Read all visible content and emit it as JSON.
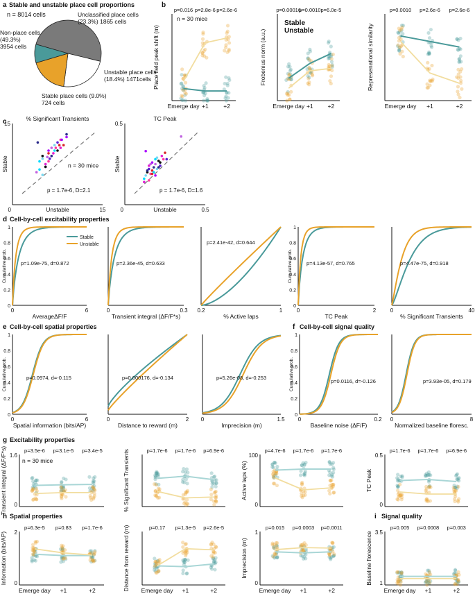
{
  "colors": {
    "stable": "#4a9a9a",
    "unstable": "#e8a22a",
    "stable_light": "#a9d6d6",
    "unstable_light": "#f2dd9f",
    "nonplace": "#7a7a7a",
    "unclassified": "#ffffff"
  },
  "panel_a": {
    "letter": "a",
    "title": "Stable and unstable place cell proportions",
    "total": "n = 8014 cells",
    "label_nonplace": [
      "Non-place cells",
      "(49.3%)",
      "3954 cells"
    ],
    "label_unclassified": [
      "Unclassified place cells",
      "(23.3%) 1865 cells"
    ],
    "label_unstable": [
      "Unstable place cells",
      "(18.4%) 1471cells"
    ],
    "label_stable": [
      "Stable place cells (9.0%)",
      "724 cells"
    ]
  },
  "panel_b": {
    "letter": "b",
    "legend_stable": "Stable",
    "legend_unstable": "Unstable",
    "n_label": "n = 30 mice",
    "xticks": [
      "Emerge day",
      "+1",
      "+2"
    ],
    "plots": [
      {
        "ylabel": "Place field peak shift (m)",
        "pvals": [
          "p=0.016",
          "p=2.8e-6",
          "p=2.6e-6"
        ],
        "yticks": [
          "0",
          "0.5",
          "1",
          "1.5"
        ]
      },
      {
        "ylabel": "Frobenius norm (a.u.)",
        "pvals": [
          "p=0.00016",
          "p=0.0010",
          "p=6.0e-5"
        ],
        "yticks": [
          "0.2",
          "0.4",
          "0.6",
          "0.8"
        ]
      },
      {
        "ylabel": "Represenational similarity",
        "pvals": [
          "p=0.0010",
          "p=2.6e-6",
          "p=2.6e-6"
        ],
        "yticks": [
          "0",
          "0.5",
          "1"
        ]
      }
    ]
  },
  "panel_c": {
    "letter": "c",
    "plots": [
      {
        "title": "% Significant Transients",
        "ylabel": "Stable",
        "xlabel": "Unstable",
        "ytop": "15",
        "xright": "15",
        "origin": "0",
        "n_label": "n = 30 mice",
        "stat": "p = 1.7e-6, D=2.1"
      },
      {
        "title": "TC Peak",
        "ylabel": "Stable",
        "xlabel": "Unstable",
        "ytop": "0.5",
        "xright": "0.5",
        "origin": "0",
        "stat": "p = 1.7e-6, D=1.6"
      }
    ]
  },
  "panel_d": {
    "letter": "d",
    "title": "Cell-by-cell excitability properties",
    "legend_stable": "Stable",
    "legend_unstable": "Unstable",
    "cum_label": "Cumulative prob.",
    "plots": [
      {
        "xlabel": "AverageΔF/F",
        "x0": "0",
        "x1": "6",
        "stat": "p=1.09e-75, d=0.872"
      },
      {
        "xlabel": "Transient integral (ΔF/F*s)",
        "x0": "0",
        "x1": "0.3",
        "stat": "p=2.36e-45, d=0.633"
      },
      {
        "xlabel": "% Active laps",
        "x0": "0.2",
        "x1": "1",
        "stat": "p=2.41e-42, d=0.644"
      },
      {
        "xlabel": "TC Peak",
        "x0": "0",
        "x1": "2",
        "stat": "p=4.13e-57, d=0.765"
      },
      {
        "xlabel": "% Significant Transients",
        "x0": "0",
        "x1": "40",
        "stat": "p=4.47e-75, d=0.918"
      }
    ]
  },
  "panel_e": {
    "letter": "e",
    "title": "Cell-by-cell spatial properties",
    "plots": [
      {
        "xlabel": "Spatial information (bits/AP)",
        "x0": "0",
        "x1": "6",
        "stat": "p=0.0974, d=-0.115"
      },
      {
        "xlabel": "Distance to reward (m)",
        "x0": "0",
        "x1": "2",
        "stat": "p=0.000176, d=-0.134"
      },
      {
        "xlabel": "Imprecision (m)",
        "x0": "0",
        "x1": "1.5",
        "stat": "p=5.26e-08, d=-0.253"
      }
    ]
  },
  "panel_f": {
    "letter": "f",
    "title": "Cell-by-cell signal quality",
    "plots": [
      {
        "xlabel": "Baseline noise (ΔF/F)",
        "x0": "0",
        "x1": "0.2",
        "stat": "p=0.0116, d=-0.126"
      },
      {
        "xlabel": "Normalized baseline floresc.",
        "x0": "0",
        "x1": "8",
        "stat": "p=3.93e-05, d=0.179"
      }
    ]
  },
  "panel_g": {
    "letter": "g",
    "title": "Excitability properties",
    "n_label": "n = 30 mice",
    "plots": [
      {
        "ylabel": "Transient integral (ΔF/F*s)",
        "pvals": [
          "p=3.5e-6",
          "p=3.1e-5",
          "p=3.4e-5"
        ],
        "ytop": "1.6",
        "ybot": "0"
      },
      {
        "ylabel": "% Significant Transients",
        "pvals": [
          "p=1.7e-6",
          "p=1.7e-6",
          "p=6.9e-6"
        ],
        "ytop": "",
        "ybot": ""
      },
      {
        "ylabel": "Active laps (%)",
        "pvals": [
          "p=4.7e-6",
          "p=1.7e-6",
          "p=1.7e-6"
        ],
        "ytop": "100",
        "ybot": "0"
      },
      {
        "ylabel": "TC Peak",
        "pvals": [
          "p=1.7e-6",
          "p=1.7e-6",
          "p=6.9e-6"
        ],
        "ytop": "0.5",
        "ybot": "0"
      }
    ]
  },
  "panel_h": {
    "letter": "h",
    "title": "Spatial properties",
    "plots": [
      {
        "ylabel": "Information (bits/AP)",
        "pvals": [
          "p=6.3e-5",
          "p=0.83",
          "p=1.7e-6"
        ],
        "ytop": "2",
        "ybot": "0"
      },
      {
        "ylabel": "Distance from reward (m)",
        "pvals": [
          "p=0.17",
          "p=1.3e-5",
          "p=2.6e-5"
        ],
        "ytop": "",
        "ybot": ""
      },
      {
        "ylabel": "Imprecision (m)",
        "pvals": [
          "p=0.015",
          "p=0.0003",
          "p=0.0011"
        ],
        "ytop": "1",
        "ybot": "0"
      }
    ],
    "xticks": [
      "Emerge day",
      "+1",
      "+2"
    ]
  },
  "panel_i": {
    "letter": "i",
    "title": "Signal quality",
    "plots": [
      {
        "ylabel": "Baseline florescence",
        "pvals": [
          "p=0.005",
          "p=0.0008",
          "p=0.003"
        ],
        "ytop": "3.5",
        "ybot": "1"
      }
    ]
  },
  "chart_data": [
    {
      "type": "pie",
      "title": "Stable and unstable place cell proportions",
      "categories": [
        "Non-place cells",
        "Unclassified place cells",
        "Unstable place cells",
        "Stable place cells"
      ],
      "values": [
        3954,
        1865,
        1471,
        724
      ]
    },
    {
      "type": "line",
      "panel": "b1",
      "ylabel": "Place field peak shift (m)",
      "categories": [
        "Emerge day",
        "+1",
        "+2"
      ],
      "series": [
        {
          "name": "Stable",
          "values": [
            0.25,
            0.2,
            0.2
          ]
        },
        {
          "name": "Unstable",
          "values": [
            0.4,
            1.2,
            1.3
          ]
        }
      ]
    },
    {
      "type": "line",
      "panel": "b2",
      "ylabel": "Frobenius norm (a.u.)",
      "categories": [
        "Emerge day",
        "+1",
        "+2"
      ],
      "series": [
        {
          "name": "Stable",
          "values": [
            0.38,
            0.5,
            0.58
          ]
        },
        {
          "name": "Unstable",
          "values": [
            0.3,
            0.44,
            0.46
          ]
        }
      ]
    },
    {
      "type": "line",
      "panel": "b3",
      "ylabel": "Represenational similarity",
      "categories": [
        "Emerge day",
        "+1",
        "+2"
      ],
      "series": [
        {
          "name": "Stable",
          "values": [
            0.82,
            0.75,
            0.68
          ]
        },
        {
          "name": "Unstable",
          "values": [
            0.75,
            0.35,
            0.22
          ]
        }
      ]
    },
    {
      "type": "scatter",
      "panel": "c1",
      "title": "% Significant Transients",
      "xlabel": "Unstable",
      "ylabel": "Stable",
      "xlim": [
        0,
        15
      ],
      "ylim": [
        0,
        15
      ],
      "x": [
        4.5,
        5,
        5,
        5.5,
        5.5,
        6,
        6,
        6,
        6.5,
        6.5,
        7,
        7,
        7.5,
        7.5,
        8,
        8,
        8.5,
        9,
        9,
        4,
        4.5,
        5,
        5.5,
        6.2,
        6.8,
        7.2,
        7.8,
        8.2,
        4.2,
        5.8
      ],
      "y": [
        8,
        8.5,
        9,
        7,
        7.5,
        8,
        9.5,
        10,
        9,
        10.5,
        10,
        11,
        10,
        11.5,
        10.5,
        12,
        11,
        12.5,
        13,
        6,
        6.5,
        5.5,
        7,
        8.5,
        9.5,
        10.5,
        11,
        12,
        11.5,
        8.8
      ]
    },
    {
      "type": "scatter",
      "panel": "c2",
      "title": "TC Peak",
      "xlabel": "Unstable",
      "ylabel": "Stable",
      "xlim": [
        0,
        0.5
      ],
      "ylim": [
        0,
        0.5
      ],
      "x": [
        0.12,
        0.13,
        0.14,
        0.15,
        0.15,
        0.16,
        0.17,
        0.17,
        0.18,
        0.19,
        0.19,
        0.2,
        0.21,
        0.22,
        0.23,
        0.24,
        0.25,
        0.13,
        0.14,
        0.16,
        0.18,
        0.2,
        0.22,
        0.26,
        0.12,
        0.15,
        0.17,
        0.19,
        0.21,
        0.35
      ],
      "y": [
        0.16,
        0.18,
        0.2,
        0.22,
        0.24,
        0.19,
        0.21,
        0.26,
        0.23,
        0.25,
        0.28,
        0.22,
        0.27,
        0.24,
        0.3,
        0.28,
        0.32,
        0.33,
        0.21,
        0.25,
        0.2,
        0.29,
        0.26,
        0.28,
        0.14,
        0.15,
        0.19,
        0.18,
        0.23,
        0.42
      ]
    },
    {
      "type": "line",
      "panel": "g",
      "categories": [
        "Emerge day",
        "+1",
        "+2"
      ],
      "series": [
        {
          "name": "Stable",
          "ylabel": "Transient integral (ΔF/F*s)",
          "values": [
            0.65,
            0.67,
            0.68
          ]
        },
        {
          "name": "Unstable",
          "ylabel": "Transient integral (ΔF/F*s)",
          "values": [
            0.4,
            0.43,
            0.43
          ]
        },
        {
          "name": "Stable",
          "ylabel": "% Significant Transients",
          "values": [
            0.65,
            0.7,
            0.62
          ]
        },
        {
          "name": "Unstable",
          "ylabel": "% Significant Transients",
          "values": [
            0.35,
            0.2,
            0.22
          ]
        },
        {
          "name": "Stable",
          "ylabel": "Active laps (%)",
          "values": [
            70,
            72,
            72
          ]
        },
        {
          "name": "Unstable",
          "ylabel": "Active laps (%)",
          "values": [
            55,
            32,
            36
          ]
        },
        {
          "name": "Stable",
          "ylabel": "TC Peak",
          "values": [
            0.25,
            0.26,
            0.24
          ]
        },
        {
          "name": "Unstable",
          "ylabel": "TC Peak",
          "values": [
            0.14,
            0.12,
            0.12
          ]
        }
      ]
    },
    {
      "type": "line",
      "panel": "h",
      "categories": [
        "Emerge day",
        "+1",
        "+2"
      ],
      "series": [
        {
          "name": "Stable",
          "ylabel": "Information (bits/AP)",
          "values": [
            1.15,
            1.1,
            1.1
          ]
        },
        {
          "name": "Unstable",
          "ylabel": "Information (bits/AP)",
          "values": [
            1.35,
            1.2,
            1.12
          ]
        },
        {
          "name": "Stable",
          "ylabel": "Distance from reward (m)",
          "values": [
            0.5,
            0.48,
            0.55
          ]
        },
        {
          "name": "Unstable",
          "ylabel": "Distance from reward (m)",
          "values": [
            0.5,
            0.95,
            0.92
          ]
        },
        {
          "name": "Stable",
          "ylabel": "Imprecision (m)",
          "values": [
            0.62,
            0.6,
            0.62
          ]
        },
        {
          "name": "Unstable",
          "ylabel": "Imprecision (m)",
          "values": [
            0.66,
            0.7,
            0.69
          ]
        }
      ]
    },
    {
      "type": "line",
      "panel": "i",
      "categories": [
        "Emerge day",
        "+1",
        "+2"
      ],
      "series": [
        {
          "name": "Stable",
          "ylabel": "Baseline florescence",
          "values": [
            1.4,
            1.4,
            1.4
          ]
        },
        {
          "name": "Unstable",
          "ylabel": "Baseline florescence",
          "values": [
            1.3,
            1.3,
            1.3
          ]
        }
      ]
    }
  ]
}
